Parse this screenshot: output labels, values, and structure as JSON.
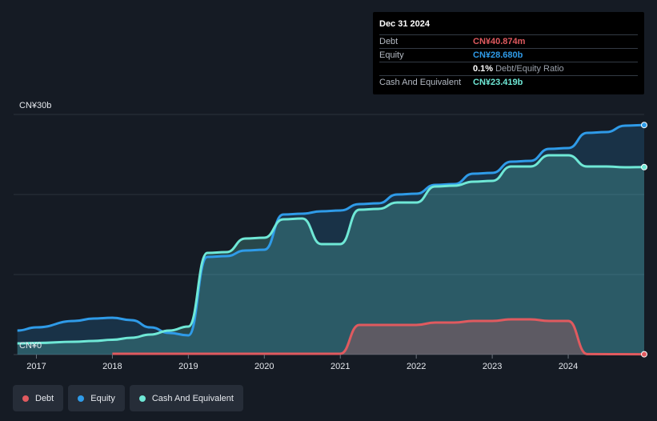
{
  "tooltip": {
    "date": "Dec 31 2024",
    "debt_label": "Debt",
    "debt_value": "CN¥40.874m",
    "equity_label": "Equity",
    "equity_value": "CN¥28.680b",
    "ratio_value": "0.1%",
    "ratio_label": "Debt/Equity Ratio",
    "cash_label": "Cash And Equivalent",
    "cash_value": "CN¥23.419b"
  },
  "colors": {
    "debt": "#e05a5f",
    "equity": "#2f9be8",
    "cash": "#6fe8d6",
    "background": "#151b24"
  },
  "legend": [
    {
      "key": "debt",
      "label": "Debt"
    },
    {
      "key": "equity",
      "label": "Equity"
    },
    {
      "key": "cash",
      "label": "Cash And Equivalent"
    }
  ],
  "chart_data": {
    "type": "area",
    "y_unit": "CN¥ billions",
    "ylim": [
      0,
      30
    ],
    "y_tick_labels": [
      "CN¥0",
      "CN¥30b"
    ],
    "x_ticks": [
      2017,
      2018,
      2019,
      2020,
      2021,
      2022,
      2023,
      2024
    ],
    "xlim": [
      2016.7,
      2025.0
    ],
    "series": [
      {
        "name": "Equity",
        "color_key": "equity",
        "points": [
          [
            2016.75,
            3.0
          ],
          [
            2017.0,
            3.4
          ],
          [
            2017.5,
            4.2
          ],
          [
            2017.75,
            4.5
          ],
          [
            2018.0,
            4.6
          ],
          [
            2018.25,
            4.3
          ],
          [
            2018.5,
            3.4
          ],
          [
            2018.75,
            2.7
          ],
          [
            2019.0,
            2.4
          ],
          [
            2019.25,
            12.2
          ],
          [
            2019.5,
            12.3
          ],
          [
            2019.75,
            13.0
          ],
          [
            2020.0,
            13.1
          ],
          [
            2020.25,
            17.5
          ],
          [
            2020.5,
            17.6
          ],
          [
            2020.75,
            17.9
          ],
          [
            2021.0,
            18.0
          ],
          [
            2021.25,
            18.8
          ],
          [
            2021.5,
            18.9
          ],
          [
            2021.75,
            20.0
          ],
          [
            2022.0,
            20.1
          ],
          [
            2022.25,
            21.2
          ],
          [
            2022.5,
            21.3
          ],
          [
            2022.75,
            22.6
          ],
          [
            2023.0,
            22.7
          ],
          [
            2023.25,
            24.1
          ],
          [
            2023.5,
            24.2
          ],
          [
            2023.75,
            25.7
          ],
          [
            2024.0,
            25.8
          ],
          [
            2024.25,
            27.7
          ],
          [
            2024.5,
            27.8
          ],
          [
            2024.75,
            28.6
          ],
          [
            2025.0,
            28.68
          ]
        ]
      },
      {
        "name": "Cash And Equivalent",
        "color_key": "cash",
        "points": [
          [
            2016.75,
            1.4
          ],
          [
            2017.0,
            1.45
          ],
          [
            2017.5,
            1.6
          ],
          [
            2017.75,
            1.7
          ],
          [
            2018.0,
            1.85
          ],
          [
            2018.25,
            2.1
          ],
          [
            2018.5,
            2.5
          ],
          [
            2018.75,
            3.0
          ],
          [
            2019.0,
            3.5
          ],
          [
            2019.25,
            12.7
          ],
          [
            2019.5,
            12.8
          ],
          [
            2019.75,
            14.5
          ],
          [
            2020.0,
            14.6
          ],
          [
            2020.25,
            16.9
          ],
          [
            2020.5,
            17.0
          ],
          [
            2020.75,
            13.8
          ],
          [
            2021.0,
            13.8
          ],
          [
            2021.25,
            18.1
          ],
          [
            2021.5,
            18.2
          ],
          [
            2021.75,
            19.0
          ],
          [
            2022.0,
            19.0
          ],
          [
            2022.25,
            21.0
          ],
          [
            2022.5,
            21.1
          ],
          [
            2022.75,
            21.6
          ],
          [
            2023.0,
            21.7
          ],
          [
            2023.25,
            23.5
          ],
          [
            2023.5,
            23.5
          ],
          [
            2023.75,
            24.9
          ],
          [
            2024.0,
            24.9
          ],
          [
            2024.25,
            23.5
          ],
          [
            2024.5,
            23.5
          ],
          [
            2024.75,
            23.4
          ],
          [
            2025.0,
            23.419
          ]
        ]
      },
      {
        "name": "Debt",
        "color_key": "debt",
        "points": [
          [
            2018.0,
            0.1
          ],
          [
            2020.75,
            0.1
          ],
          [
            2021.0,
            0.1
          ],
          [
            2021.25,
            3.7
          ],
          [
            2021.5,
            3.7
          ],
          [
            2022.0,
            3.7
          ],
          [
            2022.25,
            4.0
          ],
          [
            2022.5,
            4.0
          ],
          [
            2022.75,
            4.2
          ],
          [
            2023.0,
            4.2
          ],
          [
            2023.25,
            4.4
          ],
          [
            2023.5,
            4.4
          ],
          [
            2023.75,
            4.2
          ],
          [
            2024.0,
            4.2
          ],
          [
            2024.25,
            0.06
          ],
          [
            2025.0,
            0.041
          ]
        ]
      }
    ]
  }
}
